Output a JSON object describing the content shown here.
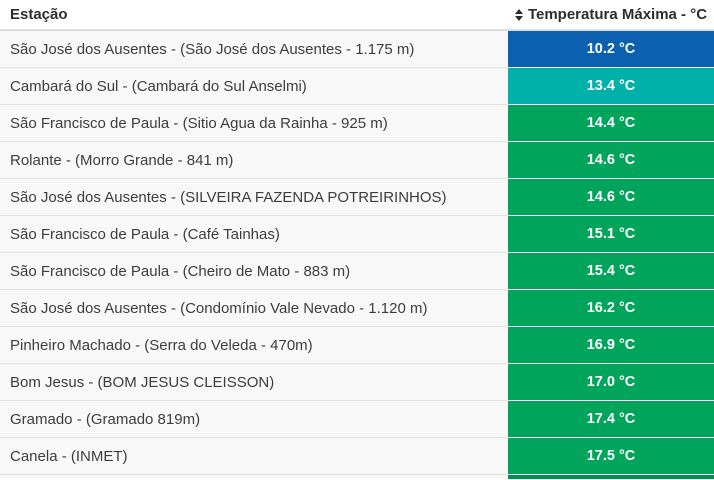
{
  "table": {
    "columns": {
      "station": "Estação",
      "temperature": "Temperatura Máxima - °C"
    },
    "rows": [
      {
        "station": "São José dos Ausentes - (São José dos Ausentes - 1.175 m)",
        "temp": "10.2 °C",
        "color": "#0b60b0"
      },
      {
        "station": "Cambará do Sul - (Cambará do Sul Anselmi)",
        "temp": "13.4 °C",
        "color": "#00b1a9"
      },
      {
        "station": "São Francisco de Paula - (Sitio Agua da Rainha - 925 m)",
        "temp": "14.4 °C",
        "color": "#00a55b"
      },
      {
        "station": "Rolante - (Morro Grande - 841 m)",
        "temp": "14.6 °C",
        "color": "#00a55b"
      },
      {
        "station": "São José dos Ausentes - (SILVEIRA FAZENDA POTREIRINHOS)",
        "temp": "14.6 °C",
        "color": "#00a55b"
      },
      {
        "station": "São Francisco de Paula - (Café Tainhas)",
        "temp": "15.1 °C",
        "color": "#00a55b"
      },
      {
        "station": "São Francisco de Paula - (Cheiro de Mato - 883 m)",
        "temp": "15.4 °C",
        "color": "#00a55b"
      },
      {
        "station": "São José dos Ausentes - (Condomínio Vale Nevado - 1.120 m)",
        "temp": "16.2 °C",
        "color": "#00a55b"
      },
      {
        "station": "Pinheiro Machado - (Serra do Veleda - 470m)",
        "temp": "16.9 °C",
        "color": "#00a55b"
      },
      {
        "station": "Bom Jesus - (BOM JESUS CLEISSON)",
        "temp": "17.0 °C",
        "color": "#00a55b"
      },
      {
        "station": "Gramado - (Gramado 819m)",
        "temp": "17.4 °C",
        "color": "#00a55b"
      },
      {
        "station": "Canela - (INMET)",
        "temp": "17.5 °C",
        "color": "#00a55b"
      }
    ],
    "partial_next_row": {
      "color": "#009150"
    }
  },
  "colors": {
    "header_text": "#2d2d2d",
    "row_text": "#3d3d3d",
    "row_background": "#f8f8f8",
    "divider": "#e2e2e2",
    "value_text": "#ffffff"
  }
}
